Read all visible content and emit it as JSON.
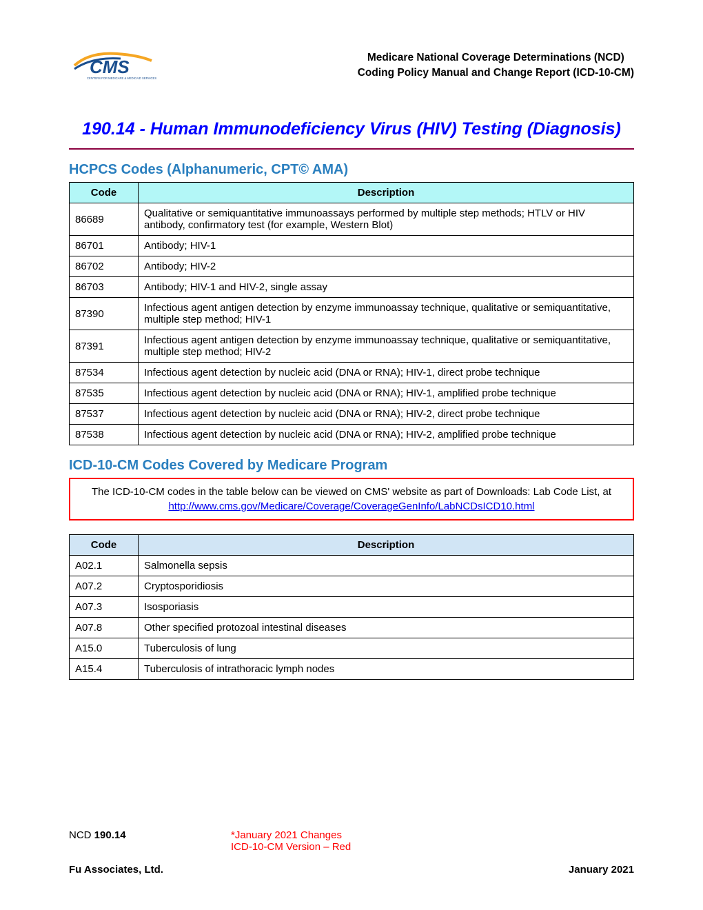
{
  "header": {
    "line1": "Medicare National Coverage Determinations (NCD)",
    "line2": "Coding Policy Manual and Change Report (ICD-10-CM)"
  },
  "title": "190.14 - Human Immunodeficiency Virus (HIV) Testing (Diagnosis)",
  "hcpcs": {
    "heading": "HCPCS Codes (Alphanumeric, CPT© AMA)",
    "columns": [
      "Code",
      "Description"
    ],
    "rows": [
      [
        "86689",
        "Qualitative or semiquantitative immunoassays performed by multiple step methods; HTLV or HIV antibody, confirmatory test (for example, Western Blot)"
      ],
      [
        "86701",
        "Antibody; HIV-1"
      ],
      [
        "86702",
        "Antibody; HIV-2"
      ],
      [
        "86703",
        "Antibody; HIV-1 and HIV-2, single assay"
      ],
      [
        "87390",
        "Infectious agent antigen detection by enzyme immunoassay technique, qualitative or semiquantitative, multiple step method; HIV-1"
      ],
      [
        "87391",
        "Infectious agent antigen detection by enzyme immunoassay technique, qualitative or semiquantitative, multiple step method; HIV-2"
      ],
      [
        "87534",
        "Infectious agent detection by nucleic acid (DNA or RNA); HIV-1, direct probe technique"
      ],
      [
        "87535",
        "Infectious agent detection by nucleic acid (DNA or RNA); HIV-1, amplified probe technique"
      ],
      [
        "87537",
        "Infectious agent detection by nucleic acid (DNA or RNA); HIV-2, direct probe technique"
      ],
      [
        "87538",
        "Infectious agent detection by nucleic acid (DNA or RNA); HIV-2, amplified probe technique"
      ]
    ]
  },
  "icd": {
    "heading": "ICD-10-CM Codes Covered by Medicare Program",
    "info_text_prefix": "The ICD-10-CM codes in the table below can be viewed on CMS' website as part of Downloads:  Lab Code List, at",
    "info_link": "http://www.cms.gov/Medicare/Coverage/CoverageGenInfo/LabNCDsICD10.html",
    "columns": [
      "Code",
      "Description"
    ],
    "rows": [
      [
        "A02.1",
        "Salmonella sepsis"
      ],
      [
        "A07.2",
        "Cryptosporidiosis"
      ],
      [
        "A07.3",
        "Isosporiasis"
      ],
      [
        "A07.8",
        "Other specified protozoal intestinal diseases"
      ],
      [
        "A15.0",
        "Tuberculosis of lung"
      ],
      [
        "A15.4",
        "Tuberculosis of intrathoracic lymph nodes"
      ]
    ]
  },
  "footer": {
    "ncd_label": "NCD ",
    "ncd_num": "190.14",
    "changes_line1": "*January 2021 Changes",
    "changes_line2": "ICD-10-CM Version – Red",
    "company": "Fu Associates, Ltd.",
    "date": "January 2021"
  },
  "colors": {
    "title_blue": "#0000ff",
    "section_blue": "#2a7fbf",
    "rule_maroon": "#8b0040",
    "hcpcs_header_bg": "#b3f7f7",
    "icd_header_bg": "#d1e5f5",
    "info_border": "#ff0000",
    "link": "#0000ee",
    "red_text": "#ff0000"
  }
}
